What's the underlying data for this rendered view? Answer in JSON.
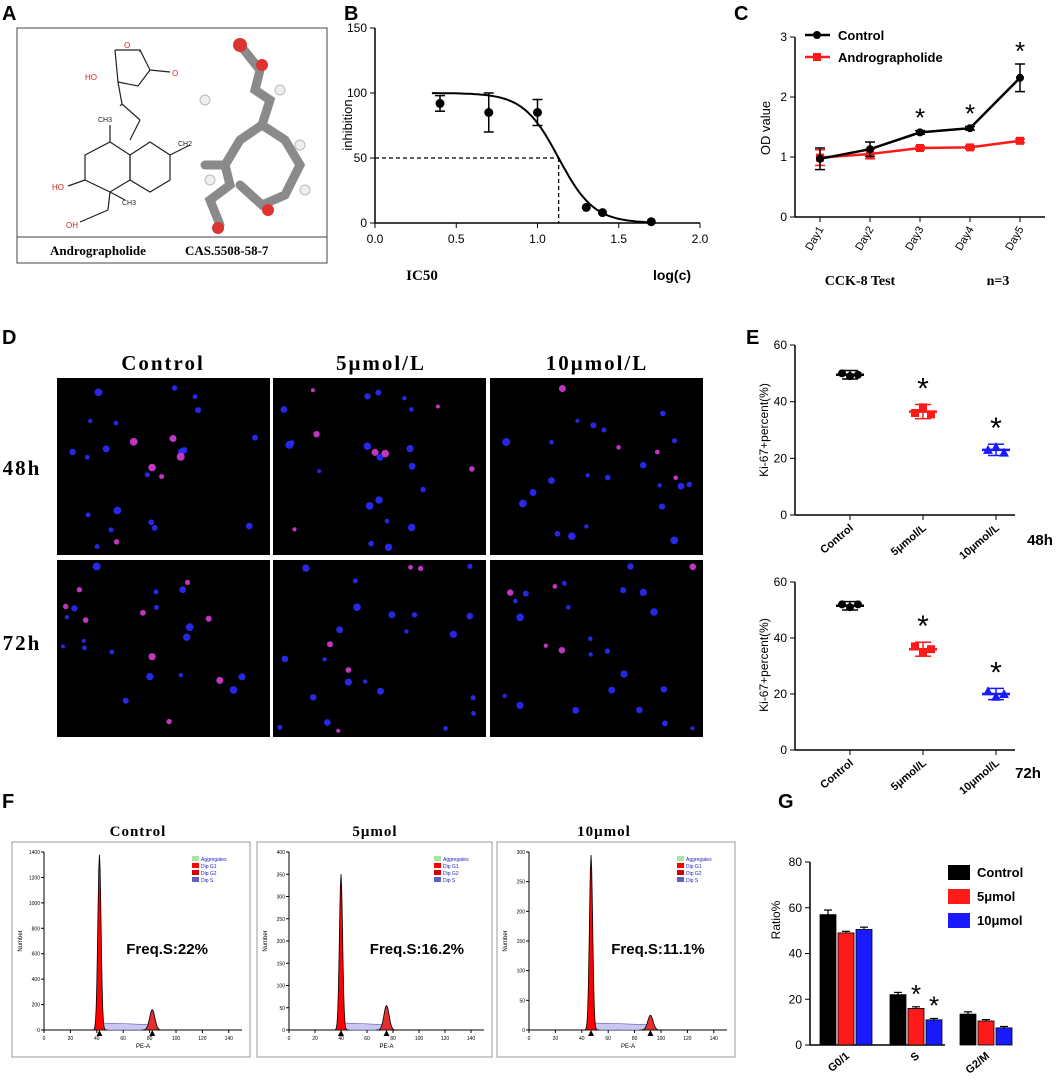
{
  "panel_labels": {
    "A": "A",
    "B": "B",
    "C": "C",
    "D": "D",
    "E": "E",
    "F": "F",
    "G": "G"
  },
  "colors": {
    "control": "#000000",
    "treat1": "#ff1a1a",
    "treat2": "#1a1aff",
    "magenta": "#d63cd6",
    "cell_blue": "#2b2bff"
  },
  "panel_a": {
    "compound": "Andrographolide",
    "cas": "CAS.5508-58-7",
    "atoms": {
      "ho": "HO",
      "o_ring": "O",
      "o_keto": "O",
      "ch3_a": "CH3",
      "ch3_b": "CH3",
      "ch2": "CH2",
      "oh": "OH"
    }
  },
  "panel_b": {
    "ylabel": "inhibition",
    "xlabel": "log(c)",
    "ic50_label": "IC50"
  },
  "panel_c": {
    "ylabel": "OD value",
    "footer": "CCK-8 Test",
    "n_label": "n=3",
    "star": "*"
  },
  "panel_d": {
    "columns": [
      "Control",
      "5μmol/L",
      "10μmol/L"
    ],
    "rows": [
      "48h",
      "72h"
    ]
  },
  "panel_e": {
    "ylabel": "Ki-67+percent(%)",
    "star": "*",
    "label_48": "48h",
    "label_72": "72h"
  },
  "panel_f": {
    "titles": [
      "Control",
      "5μmol",
      "10μmol"
    ],
    "freq": [
      "Freq.S:22%",
      "Freq.S:16.2%",
      "Freq.S:11.1%"
    ],
    "legend": [
      "Aggregates",
      "Dip G1",
      "Dip G2",
      "Dip S"
    ],
    "xaxis": "PE-A",
    "yaxis": "Number"
  },
  "panel_g": {
    "ylabel": "Ratio%",
    "legend": [
      "Control",
      "5μmol",
      "10μmol"
    ],
    "star": "*"
  },
  "chart_data": [
    {
      "id": "B",
      "type": "scatter",
      "title": "",
      "xlabel": "log(c)",
      "ylabel": "inhibition",
      "xlim": [
        0,
        2.0
      ],
      "ylim": [
        0,
        150
      ],
      "xticks": [
        0.0,
        0.5,
        1.0,
        1.5,
        2.0
      ],
      "yticks": [
        0,
        50,
        100,
        150
      ],
      "points": [
        {
          "x": 0.4,
          "y": 92,
          "err": 6
        },
        {
          "x": 0.7,
          "y": 85,
          "err": 15
        },
        {
          "x": 1.0,
          "y": 85,
          "err": 10
        },
        {
          "x": 1.3,
          "y": 12
        },
        {
          "x": 1.4,
          "y": 8
        },
        {
          "x": 1.7,
          "y": 1
        }
      ],
      "fit": {
        "top": 100,
        "bottom": 0,
        "logIC50": 1.13,
        "hill": -4
      },
      "ic50": {
        "x": 1.13,
        "y": 50
      }
    },
    {
      "id": "C",
      "type": "line",
      "xlabel": "",
      "ylabel": "OD value",
      "ylim": [
        0,
        3
      ],
      "yticks": [
        0,
        1,
        2,
        3
      ],
      "categories": [
        "Day1",
        "Day2",
        "Day3",
        "Day4",
        "Day5"
      ],
      "series": [
        {
          "name": "Control",
          "color": "#000000",
          "values": [
            0.97,
            1.13,
            1.41,
            1.48,
            2.32
          ],
          "err": [
            0.18,
            0.12,
            0.03,
            0.03,
            0.23
          ]
        },
        {
          "name": "Andrographolide",
          "color": "#ff1a1a",
          "values": [
            0.99,
            1.05,
            1.15,
            1.16,
            1.27
          ],
          "err": [
            0.13,
            0.08,
            0.03,
            0.03,
            0.03
          ]
        }
      ],
      "significant": [
        "Day3",
        "Day4",
        "Day5"
      ]
    },
    {
      "id": "E48",
      "type": "scatter",
      "ylabel": "Ki-67+percent(%)",
      "ylim": [
        0,
        60
      ],
      "yticks": [
        0,
        20,
        40,
        60
      ],
      "categories": [
        "Control",
        "5μmol/L",
        "10μmol/L"
      ],
      "means": [
        49.5,
        36.5,
        23
      ],
      "sem": [
        1.5,
        2.5,
        2
      ],
      "points": [
        [
          50,
          49,
          49.5
        ],
        [
          36,
          38,
          35.5
        ],
        [
          23,
          24,
          22
        ]
      ],
      "colors": [
        "#000000",
        "#ff1a1a",
        "#1a1aff"
      ],
      "significant": [
        "5μmol/L",
        "10μmol/L"
      ],
      "time": "48h"
    },
    {
      "id": "E72",
      "type": "scatter",
      "ylabel": "Ki-67+percent(%)",
      "ylim": [
        0,
        60
      ],
      "yticks": [
        0,
        20,
        40,
        60
      ],
      "categories": [
        "Control",
        "5μmol/L",
        "10μmol/L"
      ],
      "means": [
        51.5,
        36,
        20
      ],
      "sem": [
        1.5,
        2.5,
        2
      ],
      "points": [
        [
          52,
          51,
          52
        ],
        [
          37,
          35,
          36
        ],
        [
          21,
          19,
          20
        ]
      ],
      "colors": [
        "#000000",
        "#ff1a1a",
        "#1a1aff"
      ],
      "significant": [
        "5μmol/L",
        "10μmol/L"
      ],
      "time": "72h"
    },
    {
      "id": "F",
      "type": "area",
      "xlabel": "PE-A",
      "ylabel": "Number",
      "histograms": [
        {
          "title": "Control",
          "xlim": [
            0,
            150
          ],
          "ylim": [
            0,
            1400
          ],
          "yticks": [
            0,
            200,
            400,
            600,
            800,
            1000,
            1200,
            1400
          ],
          "g1_peak": {
            "x": 42,
            "y": 1380
          },
          "g2_peak": {
            "x": 82,
            "y": 160
          },
          "freq_s": "22%"
        },
        {
          "title": "5μmol",
          "xlim": [
            0,
            150
          ],
          "ylim": [
            0,
            400
          ],
          "yticks": [
            0,
            50,
            100,
            150,
            200,
            250,
            300,
            350,
            400
          ],
          "g1_peak": {
            "x": 40,
            "y": 350
          },
          "g2_peak": {
            "x": 75,
            "y": 55
          },
          "freq_s": "16.2%"
        },
        {
          "title": "10μmol",
          "xlim": [
            0,
            150
          ],
          "ylim": [
            0,
            300
          ],
          "yticks": [
            0,
            50,
            100,
            150,
            200,
            250,
            300
          ],
          "g1_peak": {
            "x": 47,
            "y": 295
          },
          "g2_peak": {
            "x": 92,
            "y": 25
          },
          "freq_s": "11.1%"
        }
      ],
      "xticks": [
        0,
        20,
        40,
        60,
        80,
        100,
        120,
        140
      ]
    },
    {
      "id": "G",
      "type": "bar",
      "ylabel": "Ratio%",
      "ylim": [
        0,
        80
      ],
      "yticks": [
        0,
        20,
        40,
        60,
        80
      ],
      "categories": [
        "G0/1",
        "S",
        "G2/M"
      ],
      "series": [
        {
          "name": "Control",
          "color": "#000000",
          "values": [
            57,
            22,
            13.5
          ],
          "err": [
            2,
            1,
            1
          ]
        },
        {
          "name": "5μmol",
          "color": "#ff1a1a",
          "values": [
            49,
            16,
            10.5
          ],
          "err": [
            0.7,
            0.7,
            0.6
          ]
        },
        {
          "name": "10μmol",
          "color": "#1a1aff",
          "values": [
            50.5,
            11,
            7.5
          ],
          "err": [
            1,
            0.6,
            0.6
          ]
        }
      ],
      "significant": {
        "S": [
          "5μmol",
          "10μmol"
        ]
      }
    }
  ]
}
